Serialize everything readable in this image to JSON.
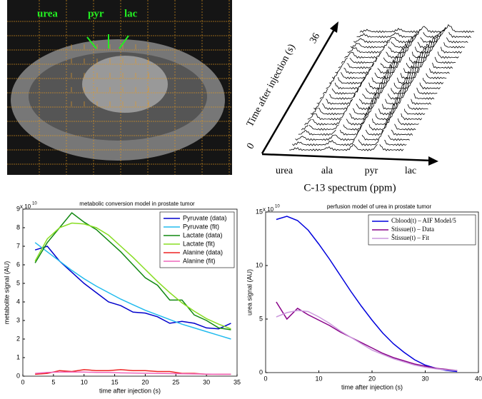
{
  "chart_data": [
    {
      "type": "image",
      "labels": [
        "urea",
        "pyr",
        "lac"
      ]
    },
    {
      "type": "waterfall",
      "ylabel": "Time after injection (s)",
      "yticks": [
        0,
        36
      ],
      "categories": [
        "urea",
        "ala",
        "pyr",
        "lac"
      ],
      "xlabel": "C-13 spectrum (ppm)"
    },
    {
      "type": "line",
      "title": "metabolic conversion model in prostate tumor",
      "xlabel": "time after injection (s)",
      "ylabel": "metabolite signal (AU)",
      "y_multiplier": {
        "base": "x 10",
        "exponent": "10"
      },
      "xlim": [
        0,
        35
      ],
      "xticks": [
        0,
        5,
        10,
        15,
        20,
        25,
        30,
        35
      ],
      "ylim": [
        0,
        9
      ],
      "yticks": [
        0,
        1,
        2,
        3,
        4,
        5,
        6,
        7,
        8,
        9
      ],
      "legend": "upper right",
      "series": [
        {
          "name": "Pyruvate (data)",
          "color": "#0000cc",
          "x": [
            2,
            4,
            6,
            8,
            10,
            12,
            14,
            16,
            18,
            20,
            22,
            24,
            26,
            28,
            30,
            32,
            34
          ],
          "values": [
            6.8,
            7.0,
            6.2,
            5.6,
            5.0,
            4.5,
            4.0,
            3.8,
            3.45,
            3.4,
            3.2,
            2.85,
            2.95,
            2.85,
            2.6,
            2.55,
            2.85
          ]
        },
        {
          "name": "Pyruvate (fit)",
          "color": "#22bbee",
          "x": [
            2,
            4,
            6,
            8,
            10,
            12,
            14,
            16,
            18,
            20,
            22,
            24,
            26,
            28,
            30,
            32,
            34
          ],
          "values": [
            7.2,
            6.7,
            6.2,
            5.7,
            5.25,
            4.85,
            4.5,
            4.15,
            3.85,
            3.55,
            3.3,
            3.05,
            2.8,
            2.6,
            2.4,
            2.2,
            2.0
          ]
        },
        {
          "name": "Lactate (data)",
          "color": "#118811",
          "x": [
            2,
            4,
            6,
            8,
            10,
            12,
            14,
            16,
            18,
            20,
            22,
            24,
            26,
            28,
            30,
            32,
            34
          ],
          "values": [
            6.1,
            7.2,
            8.0,
            8.8,
            8.3,
            7.9,
            7.3,
            6.7,
            6.0,
            5.3,
            4.9,
            4.1,
            4.1,
            3.3,
            3.0,
            2.6,
            2.5
          ]
        },
        {
          "name": "Lactate (fit)",
          "color": "#88dd22",
          "x": [
            2,
            4,
            6,
            8,
            10,
            12,
            14,
            16,
            18,
            20,
            22,
            24,
            26,
            28,
            30,
            32,
            34
          ],
          "values": [
            6.2,
            7.4,
            8.0,
            8.25,
            8.2,
            8.0,
            7.6,
            7.0,
            6.4,
            5.75,
            5.1,
            4.5,
            3.95,
            3.5,
            3.1,
            2.8,
            2.55
          ]
        },
        {
          "name": "Alanine (data)",
          "color": "#ee2222",
          "x": [
            2,
            4,
            6,
            8,
            10,
            12,
            14,
            16,
            18,
            20,
            22,
            24,
            26,
            28,
            30,
            32,
            34
          ],
          "values": [
            0.1,
            0.15,
            0.3,
            0.25,
            0.35,
            0.3,
            0.3,
            0.35,
            0.3,
            0.3,
            0.25,
            0.25,
            0.15,
            0.15,
            0.1,
            0.1,
            0.1
          ]
        },
        {
          "name": "Alanine (fit)",
          "color": "#ee66bb",
          "x": [
            2,
            4,
            6,
            8,
            10,
            12,
            14,
            16,
            18,
            20,
            22,
            24,
            26,
            28,
            30,
            32,
            34
          ],
          "values": [
            0.15,
            0.2,
            0.22,
            0.22,
            0.22,
            0.2,
            0.2,
            0.18,
            0.17,
            0.16,
            0.15,
            0.14,
            0.13,
            0.12,
            0.11,
            0.1,
            0.1
          ]
        }
      ]
    },
    {
      "type": "line",
      "title": "perfusion model of urea in prostate tumor",
      "xlabel": "time after injection (s)",
      "ylabel": "urea signal (AU)",
      "y_multiplier": {
        "base": "x 10",
        "exponent": "10"
      },
      "xlim": [
        0,
        40
      ],
      "xticks": [
        0,
        10,
        20,
        30,
        40
      ],
      "ylim": [
        0,
        15
      ],
      "yticks": [
        0,
        5,
        10,
        15
      ],
      "legend": "upper right",
      "series": [
        {
          "name": "Cblood(t) – AIF Model/5",
          "color": "#0000dd",
          "x": [
            2,
            4,
            6,
            8,
            10,
            12,
            14,
            16,
            18,
            20,
            22,
            24,
            26,
            28,
            30,
            32,
            34,
            36
          ],
          "values": [
            14.3,
            14.6,
            14.2,
            13.3,
            12.0,
            10.6,
            9.1,
            7.6,
            6.2,
            4.9,
            3.7,
            2.7,
            1.9,
            1.2,
            0.7,
            0.4,
            0.2,
            0.1
          ]
        },
        {
          "name": "Stissue(t) – Data",
          "color": "#880088",
          "x": [
            2,
            4,
            6,
            8,
            10,
            12,
            14,
            16,
            18,
            20,
            22,
            24,
            26,
            28,
            30,
            32,
            34,
            36
          ],
          "values": [
            6.6,
            5.0,
            6.0,
            5.4,
            4.9,
            4.4,
            3.8,
            3.3,
            2.8,
            2.3,
            1.8,
            1.4,
            1.1,
            0.8,
            0.6,
            0.4,
            0.3,
            0.2
          ]
        },
        {
          "name": "Ŝtissue(t) – Fit",
          "color": "#cc99dd",
          "x": [
            2,
            4,
            6,
            8,
            10,
            12,
            14,
            16,
            18,
            20,
            22,
            24,
            26,
            28,
            30,
            32,
            34,
            36
          ],
          "values": [
            5.2,
            5.6,
            5.8,
            5.7,
            5.2,
            4.6,
            3.9,
            3.3,
            2.7,
            2.1,
            1.7,
            1.3,
            1.0,
            0.7,
            0.5,
            0.35,
            0.25,
            0.2
          ]
        }
      ]
    }
  ]
}
